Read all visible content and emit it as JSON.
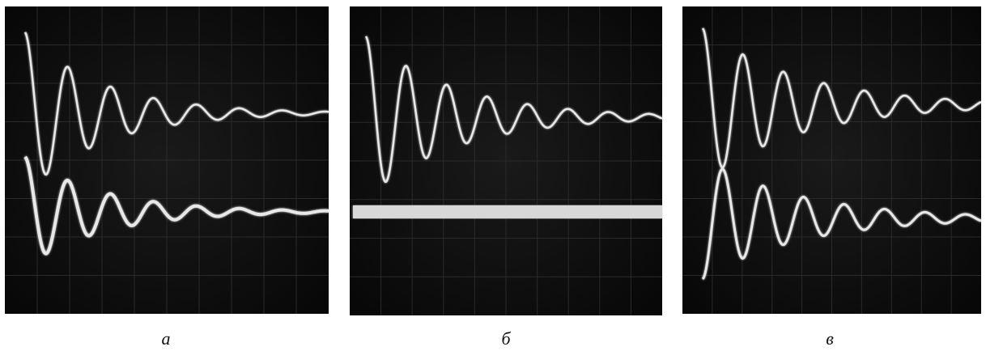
{
  "panels": [
    {
      "label": "а"
    },
    {
      "label": "б"
    },
    {
      "label": "в"
    }
  ]
}
